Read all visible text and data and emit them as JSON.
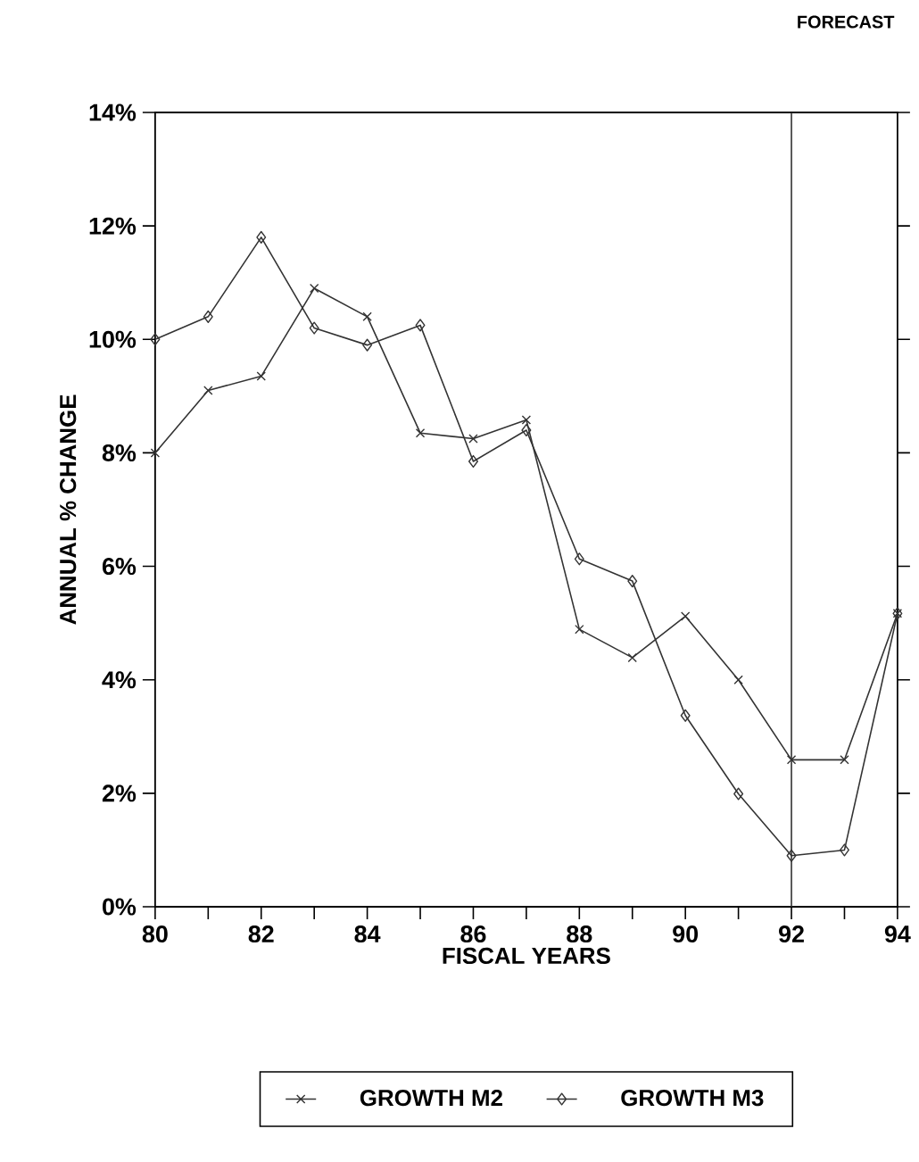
{
  "chart_data": {
    "type": "line",
    "xlabel": "FISCAL YEARS",
    "ylabel": "ANNUAL % CHANGE",
    "x": [
      80,
      81,
      82,
      83,
      84,
      85,
      86,
      87,
      88,
      89,
      90,
      91,
      92,
      93,
      94
    ],
    "series": [
      {
        "name": "GROWTH M2",
        "color": "#333333",
        "marker": "cross",
        "values": [
          8.0,
          9.1,
          9.35,
          10.9,
          10.4,
          8.35,
          8.25,
          8.58,
          4.89,
          4.39,
          5.12,
          4.0,
          2.59,
          2.59,
          5.17
        ]
      },
      {
        "name": "GROWTH M3",
        "color": "#333333",
        "marker": "diamond",
        "values": [
          10.0,
          10.4,
          11.8,
          10.2,
          9.9,
          10.25,
          7.85,
          8.4,
          6.13,
          5.74,
          3.37,
          1.99,
          0.9,
          1.0,
          5.17
        ]
      }
    ],
    "xlim": [
      80,
      94
    ],
    "ylim": [
      0,
      14
    ],
    "xticks": [
      80,
      {
        "value": 81,
        "label": null
      },
      82,
      {
        "value": 83,
        "label": null
      },
      84,
      {
        "value": 85,
        "label": null
      },
      86,
      {
        "value": 87,
        "label": null
      },
      88,
      {
        "value": 89,
        "label": null
      },
      90,
      {
        "value": 91,
        "label": null
      },
      92,
      {
        "value": 93,
        "label": null
      },
      94
    ],
    "yticks": [
      {
        "value": 0,
        "label": "0%"
      },
      {
        "value": 2,
        "label": "2%"
      },
      {
        "value": 4,
        "label": "4%"
      },
      {
        "value": 6,
        "label": "6%"
      },
      {
        "value": 8,
        "label": "8%"
      },
      {
        "value": 10,
        "label": "10%"
      },
      {
        "value": 12,
        "label": "12%"
      },
      {
        "value": 14,
        "label": "14%"
      }
    ],
    "ref_lines": [
      {
        "axis": "x",
        "value": 92,
        "color": "#333333"
      }
    ],
    "annotations": [
      "FORECAST"
    ],
    "grid": false,
    "legend": "bottom",
    "line_style": "solid"
  }
}
